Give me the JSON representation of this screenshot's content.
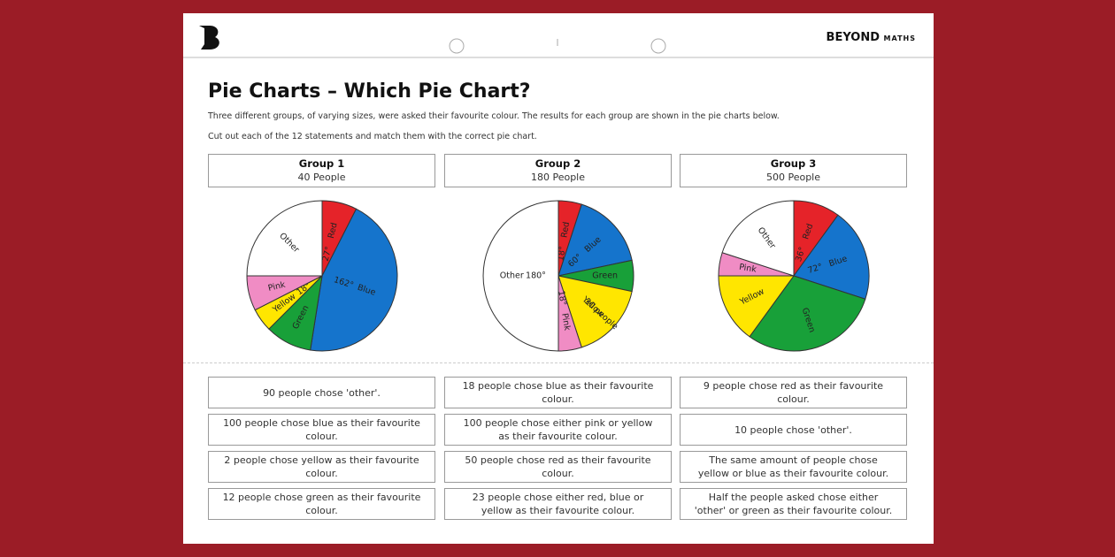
{
  "header": {
    "brand": "BEYOND",
    "brand_sub": "MATHS"
  },
  "title": "Pie Charts – Which Pie Chart?",
  "intro": [
    "Three different groups, of varying sizes, were asked their favourite colour. The results for each group are shown in the pie charts below.",
    "Cut out each of the 12 statements and match them with the correct pie chart."
  ],
  "groups": [
    {
      "name": "Group 1",
      "size": "40 People",
      "chart": {
        "type": "pie",
        "slices": [
          {
            "name": "Red",
            "value": 27,
            "value_label": "27°",
            "color": "#e52329"
          },
          {
            "name": "Blue",
            "value": 162,
            "value_label": "162°",
            "color": "#1574cc"
          },
          {
            "name": "Green",
            "value": 36,
            "color": "#18a039"
          },
          {
            "name": "Yellow",
            "value": 18,
            "value_label": "18°",
            "color": "#ffe600"
          },
          {
            "name": "Pink",
            "value": 27,
            "color": "#f08cc4"
          },
          {
            "name": "Other",
            "value": 90,
            "color": "#ffffff"
          }
        ]
      }
    },
    {
      "name": "Group 2",
      "size": "180 People",
      "chart": {
        "type": "pie",
        "slices": [
          {
            "name": "Red",
            "value": 18,
            "value_label": "18°",
            "color": "#e52329"
          },
          {
            "name": "Blue",
            "value": 60,
            "value_label": "60°",
            "color": "#1574cc"
          },
          {
            "name": "Green",
            "value": 24,
            "color": "#18a039"
          },
          {
            "name": "Yellow",
            "value": 60,
            "note": "30 people",
            "color": "#ffe600"
          },
          {
            "name": "Pink",
            "value": 18,
            "value_label": "18°",
            "color": "#f08cc4"
          },
          {
            "name": "Other",
            "value": 180,
            "value_label": "180°",
            "color": "#ffffff"
          }
        ]
      }
    },
    {
      "name": "Group 3",
      "size": "500 People",
      "chart": {
        "type": "pie",
        "slices": [
          {
            "name": "Red",
            "value": 36,
            "value_label": "36°",
            "color": "#e52329"
          },
          {
            "name": "Blue",
            "value": 72,
            "value_label": "72°",
            "color": "#1574cc"
          },
          {
            "name": "Green",
            "value": 108,
            "color": "#18a039"
          },
          {
            "name": "Yellow",
            "value": 54,
            "color": "#ffe600"
          },
          {
            "name": "Pink",
            "value": 18,
            "color": "#f08cc4"
          },
          {
            "name": "Other",
            "value": 72,
            "color": "#ffffff"
          }
        ]
      }
    }
  ],
  "statements": [
    [
      "90 people chose 'other'.",
      "100 people chose blue as their favourite colour.",
      "2 people chose yellow as their favourite colour.",
      "12 people chose green as their favourite colour."
    ],
    [
      "18 people chose blue as their favourite colour.",
      "100 people chose either pink or yellow as their favourite colour.",
      "50 people chose red as their favourite colour.",
      "23 people chose either red, blue or yellow as their favourite colour."
    ],
    [
      "9 people chose red as their favourite colour.",
      "10 people chose 'other'.",
      "The same amount of people chose yellow or blue as their favourite colour.",
      "Half the people asked chose either 'other' or green as their favourite colour."
    ]
  ]
}
